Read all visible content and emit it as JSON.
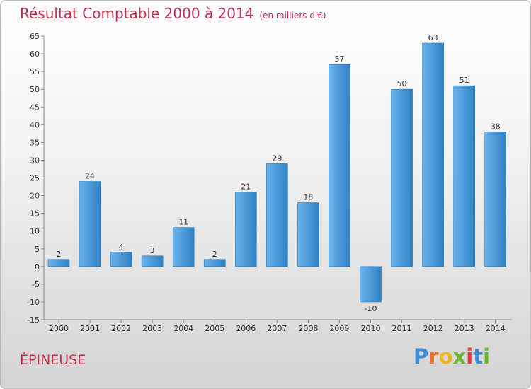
{
  "header": {
    "title": "Résultat Comptable 2000 à 2014",
    "subtitle": "(en milliers d'€)"
  },
  "commune": "ÉPINEUSE",
  "logo": {
    "text": "Proxiti",
    "letters": [
      "P",
      "r",
      "o",
      "x",
      "i",
      "t",
      "i"
    ],
    "colors": [
      "#3a8fd6",
      "#e8742a",
      "#f0b820",
      "#6ab82e",
      "#e23b3b",
      "#3a8fd6",
      "#6ab82e"
    ]
  },
  "colors": {
    "bar_light": "#6ab4ec",
    "bar_dark": "#2f7fc4",
    "title": "#c0304f"
  },
  "chart_data": {
    "type": "bar",
    "title": "Résultat Comptable 2000 à 2014",
    "ylabel": "en milliers d'€",
    "xlabel": "",
    "categories": [
      "2000",
      "2001",
      "2002",
      "2003",
      "2004",
      "2005",
      "2006",
      "2007",
      "2008",
      "2009",
      "2010",
      "2011",
      "2012",
      "2013",
      "2014"
    ],
    "values": [
      2,
      24,
      4,
      3,
      11,
      2,
      21,
      29,
      18,
      57,
      -10,
      50,
      63,
      51,
      38
    ],
    "ylim": [
      -15,
      65
    ],
    "yticks": [
      -15,
      -10,
      -5,
      0,
      5,
      10,
      15,
      20,
      25,
      30,
      35,
      40,
      45,
      50,
      55,
      60,
      65
    ],
    "grid": false
  }
}
